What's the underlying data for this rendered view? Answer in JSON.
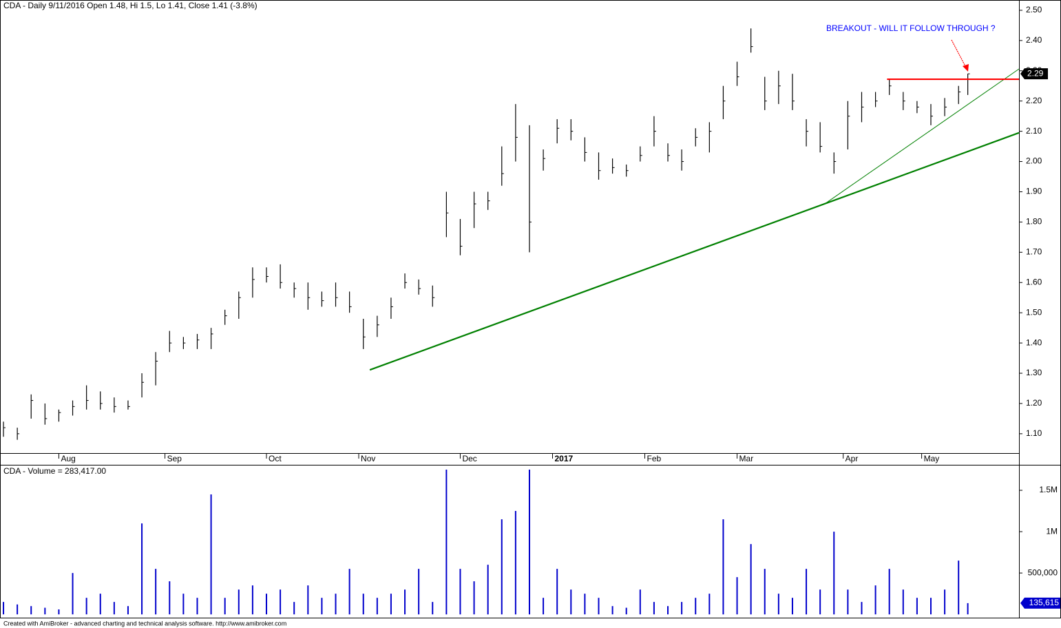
{
  "chart_data": [
    {
      "type": "ohlc",
      "title": "CDA - Daily 9/11/2016 Open 1.48, Hi 1.5, Lo 1.41, Close 1.41 (-3.8%)",
      "annotation": "BREAKOUT - WILL IT FOLLOW THROUGH ?",
      "x": [
        0,
        3,
        6,
        9,
        12,
        15,
        18,
        21,
        24,
        27,
        30,
        33,
        36,
        39,
        42,
        45,
        48,
        51,
        54,
        57,
        60,
        63,
        66,
        69,
        72,
        75,
        78,
        81,
        84,
        87,
        90,
        93,
        96,
        99,
        102,
        105,
        108,
        111,
        114,
        117,
        120,
        123,
        126,
        129,
        132,
        135,
        138,
        141,
        144,
        147,
        150,
        153,
        156,
        159,
        162,
        165,
        168,
        171,
        174,
        177,
        180,
        183,
        186,
        189,
        192,
        195,
        198,
        201,
        204,
        207,
        209
      ],
      "high": [
        1.14,
        1.12,
        1.23,
        1.2,
        1.18,
        1.21,
        1.26,
        1.24,
        1.22,
        1.21,
        1.3,
        1.37,
        1.44,
        1.42,
        1.43,
        1.45,
        1.51,
        1.57,
        1.65,
        1.65,
        1.66,
        1.6,
        1.6,
        1.57,
        1.6,
        1.57,
        1.48,
        1.49,
        1.55,
        1.63,
        1.61,
        1.59,
        1.9,
        1.81,
        1.9,
        1.9,
        2.05,
        2.19,
        2.12,
        2.04,
        2.14,
        2.14,
        2.08,
        2.03,
        2.01,
        1.99,
        2.05,
        2.15,
        2.06,
        2.04,
        2.11,
        2.13,
        2.25,
        2.33,
        2.44,
        2.28,
        2.3,
        2.29,
        2.14,
        2.13,
        2.03,
        2.2,
        2.23,
        2.23,
        2.27,
        2.23,
        2.2,
        2.19,
        2.21,
        2.25,
        2.29
      ],
      "low": [
        1.09,
        1.08,
        1.15,
        1.13,
        1.14,
        1.16,
        1.18,
        1.18,
        1.17,
        1.18,
        1.22,
        1.26,
        1.37,
        1.38,
        1.38,
        1.38,
        1.46,
        1.48,
        1.55,
        1.6,
        1.58,
        1.55,
        1.51,
        1.52,
        1.52,
        1.5,
        1.38,
        1.42,
        1.48,
        1.58,
        1.56,
        1.52,
        1.75,
        1.69,
        1.78,
        1.84,
        1.92,
        2.0,
        1.7,
        1.97,
        2.06,
        2.07,
        2.0,
        1.94,
        1.96,
        1.95,
        2.0,
        2.05,
        2.0,
        1.97,
        2.05,
        2.03,
        2.14,
        2.25,
        2.36,
        2.17,
        2.19,
        2.17,
        2.05,
        2.03,
        1.96,
        2.04,
        2.13,
        2.18,
        2.22,
        2.17,
        2.16,
        2.12,
        2.15,
        2.19,
        2.22
      ],
      "close": [
        1.12,
        1.1,
        1.21,
        1.15,
        1.17,
        1.19,
        1.21,
        1.2,
        1.19,
        1.19,
        1.27,
        1.34,
        1.4,
        1.4,
        1.41,
        1.43,
        1.49,
        1.55,
        1.61,
        1.62,
        1.6,
        1.58,
        1.55,
        1.54,
        1.55,
        1.52,
        1.42,
        1.46,
        1.52,
        1.6,
        1.58,
        1.55,
        1.83,
        1.72,
        1.86,
        1.87,
        1.96,
        2.08,
        1.8,
        2.01,
        2.11,
        2.1,
        2.03,
        1.97,
        1.98,
        1.97,
        2.02,
        2.1,
        2.02,
        2.0,
        2.08,
        2.1,
        2.2,
        2.28,
        2.38,
        2.2,
        2.25,
        2.2,
        2.1,
        2.05,
        2.0,
        2.15,
        2.18,
        2.2,
        2.25,
        2.2,
        2.18,
        2.15,
        2.18,
        2.23,
        2.29
      ],
      "color": "#000000",
      "xlim": [
        -0.75,
        220.1
      ],
      "xticks": [
        {
          "value": 12,
          "label": "Aug"
        },
        {
          "value": 35,
          "label": "Sep"
        },
        {
          "value": 57,
          "label": "Oct"
        },
        {
          "value": 77,
          "label": "Nov"
        },
        {
          "value": 99,
          "label": "Dec"
        },
        {
          "value": 119,
          "label": "2017"
        },
        {
          "value": 139,
          "label": "Feb"
        },
        {
          "value": 159,
          "label": "Mar"
        },
        {
          "value": 182,
          "label": "Apr"
        },
        {
          "value": 199,
          "label": "May"
        }
      ],
      "ylim": [
        1.036,
        2.534
      ],
      "yticks": [
        {
          "value": 1.1,
          "label": "1.10"
        },
        {
          "value": 1.2,
          "label": "1.20"
        },
        {
          "value": 1.3,
          "label": "1.30"
        },
        {
          "value": 1.4,
          "label": "1.40"
        },
        {
          "value": 1.5,
          "label": "1.50"
        },
        {
          "value": 1.6,
          "label": "1.60"
        },
        {
          "value": 1.7,
          "label": "1.70"
        },
        {
          "value": 1.8,
          "label": "1.80"
        },
        {
          "value": 1.9,
          "label": "1.90"
        },
        {
          "value": 2.0,
          "label": "2.00"
        },
        {
          "value": 2.1,
          "label": "2.10"
        },
        {
          "value": 2.2,
          "label": "2.20"
        },
        {
          "value": 2.3,
          "label": "2.30"
        },
        {
          "value": 2.4,
          "label": "2.40"
        },
        {
          "value": 2.5,
          "label": "2.50"
        }
      ],
      "lines": [
        {
          "x": [
            79.4,
            220.1
          ],
          "y": [
            1.311,
            2.095
          ],
          "color": "#008000"
        },
        {
          "x": [
            178,
            220.1
          ],
          "y": [
            1.86,
            2.306
          ],
          "color": "#008000"
        },
        {
          "x": [
            191.5,
            220.1
          ],
          "y": [
            2.272,
            2.272
          ],
          "color": "#ff0000"
        }
      ]
    },
    {
      "type": "bar",
      "title": "CDA - Volume = 283,417.00",
      "x": [
        0,
        3,
        6,
        9,
        12,
        15,
        18,
        21,
        24,
        27,
        30,
        33,
        36,
        39,
        42,
        45,
        48,
        51,
        54,
        57,
        60,
        63,
        66,
        69,
        72,
        75,
        78,
        81,
        84,
        87,
        90,
        93,
        96,
        99,
        102,
        105,
        108,
        111,
        114,
        117,
        120,
        123,
        126,
        129,
        132,
        135,
        138,
        141,
        144,
        147,
        150,
        153,
        156,
        159,
        162,
        165,
        168,
        171,
        174,
        177,
        180,
        183,
        186,
        189,
        192,
        195,
        198,
        201,
        204,
        207,
        209
      ],
      "values": [
        150000,
        120000,
        100000,
        80000,
        60000,
        500000,
        200000,
        250000,
        150000,
        100000,
        1100000,
        550000,
        400000,
        250000,
        200000,
        1450000,
        200000,
        300000,
        350000,
        250000,
        300000,
        150000,
        350000,
        200000,
        250000,
        550000,
        250000,
        200000,
        250000,
        300000,
        550000,
        150000,
        1750000,
        550000,
        400000,
        600000,
        1150000,
        1250000,
        1750000,
        200000,
        550000,
        300000,
        250000,
        200000,
        100000,
        80000,
        300000,
        150000,
        100000,
        150000,
        200000,
        250000,
        1150000,
        450000,
        850000,
        550000,
        250000,
        200000,
        550000,
        300000,
        1000000,
        300000,
        150000,
        350000,
        550000,
        300000,
        200000,
        200000,
        300000,
        650000,
        135615
      ],
      "last_value_label": "135,615",
      "color": "#0000cc",
      "xlim": [
        -0.75,
        220.1
      ],
      "ylim": [
        -40000,
        1800000
      ],
      "yticks": [
        {
          "value": 500000,
          "label": "500,000"
        },
        {
          "value": 1000000,
          "label": "1M"
        },
        {
          "value": 1500000,
          "label": "1.5M"
        }
      ]
    }
  ],
  "footer": "Created with AmiBroker - advanced charting and technical analysis software. http://www.amibroker.com"
}
